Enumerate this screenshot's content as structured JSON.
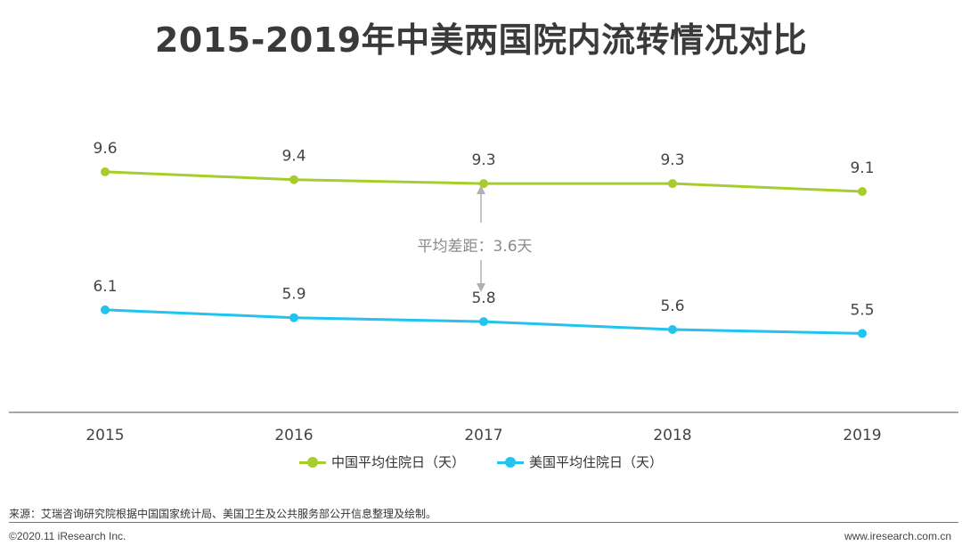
{
  "title": "2015-2019年中美两国院内流转情况对比",
  "chart_data": {
    "type": "line",
    "categories": [
      "2015",
      "2016",
      "2017",
      "2018",
      "2019"
    ],
    "series": [
      {
        "name": "中国平均住院日（天）",
        "color": "#a6cd2c",
        "values": [
          9.6,
          9.4,
          9.3,
          9.3,
          9.1
        ]
      },
      {
        "name": "美国平均住院日（天）",
        "color": "#22c3ee",
        "values": [
          6.1,
          5.9,
          5.8,
          5.6,
          5.5
        ]
      }
    ],
    "annotation": "平均差距：3.6天",
    "ylim": [
      3.5,
      11.2
    ],
    "xlabel": "",
    "ylabel": ""
  },
  "footer": {
    "source": "来源：艾瑞咨询研究院根据中国国家统计局、美国卫生及公共服务部公开信息整理及绘制。",
    "copyright": "©2020.11 iResearch Inc.",
    "website": "www.iresearch.com.cn"
  },
  "colors": {
    "axis": "#888888",
    "annotation": "#9e9e9e"
  }
}
